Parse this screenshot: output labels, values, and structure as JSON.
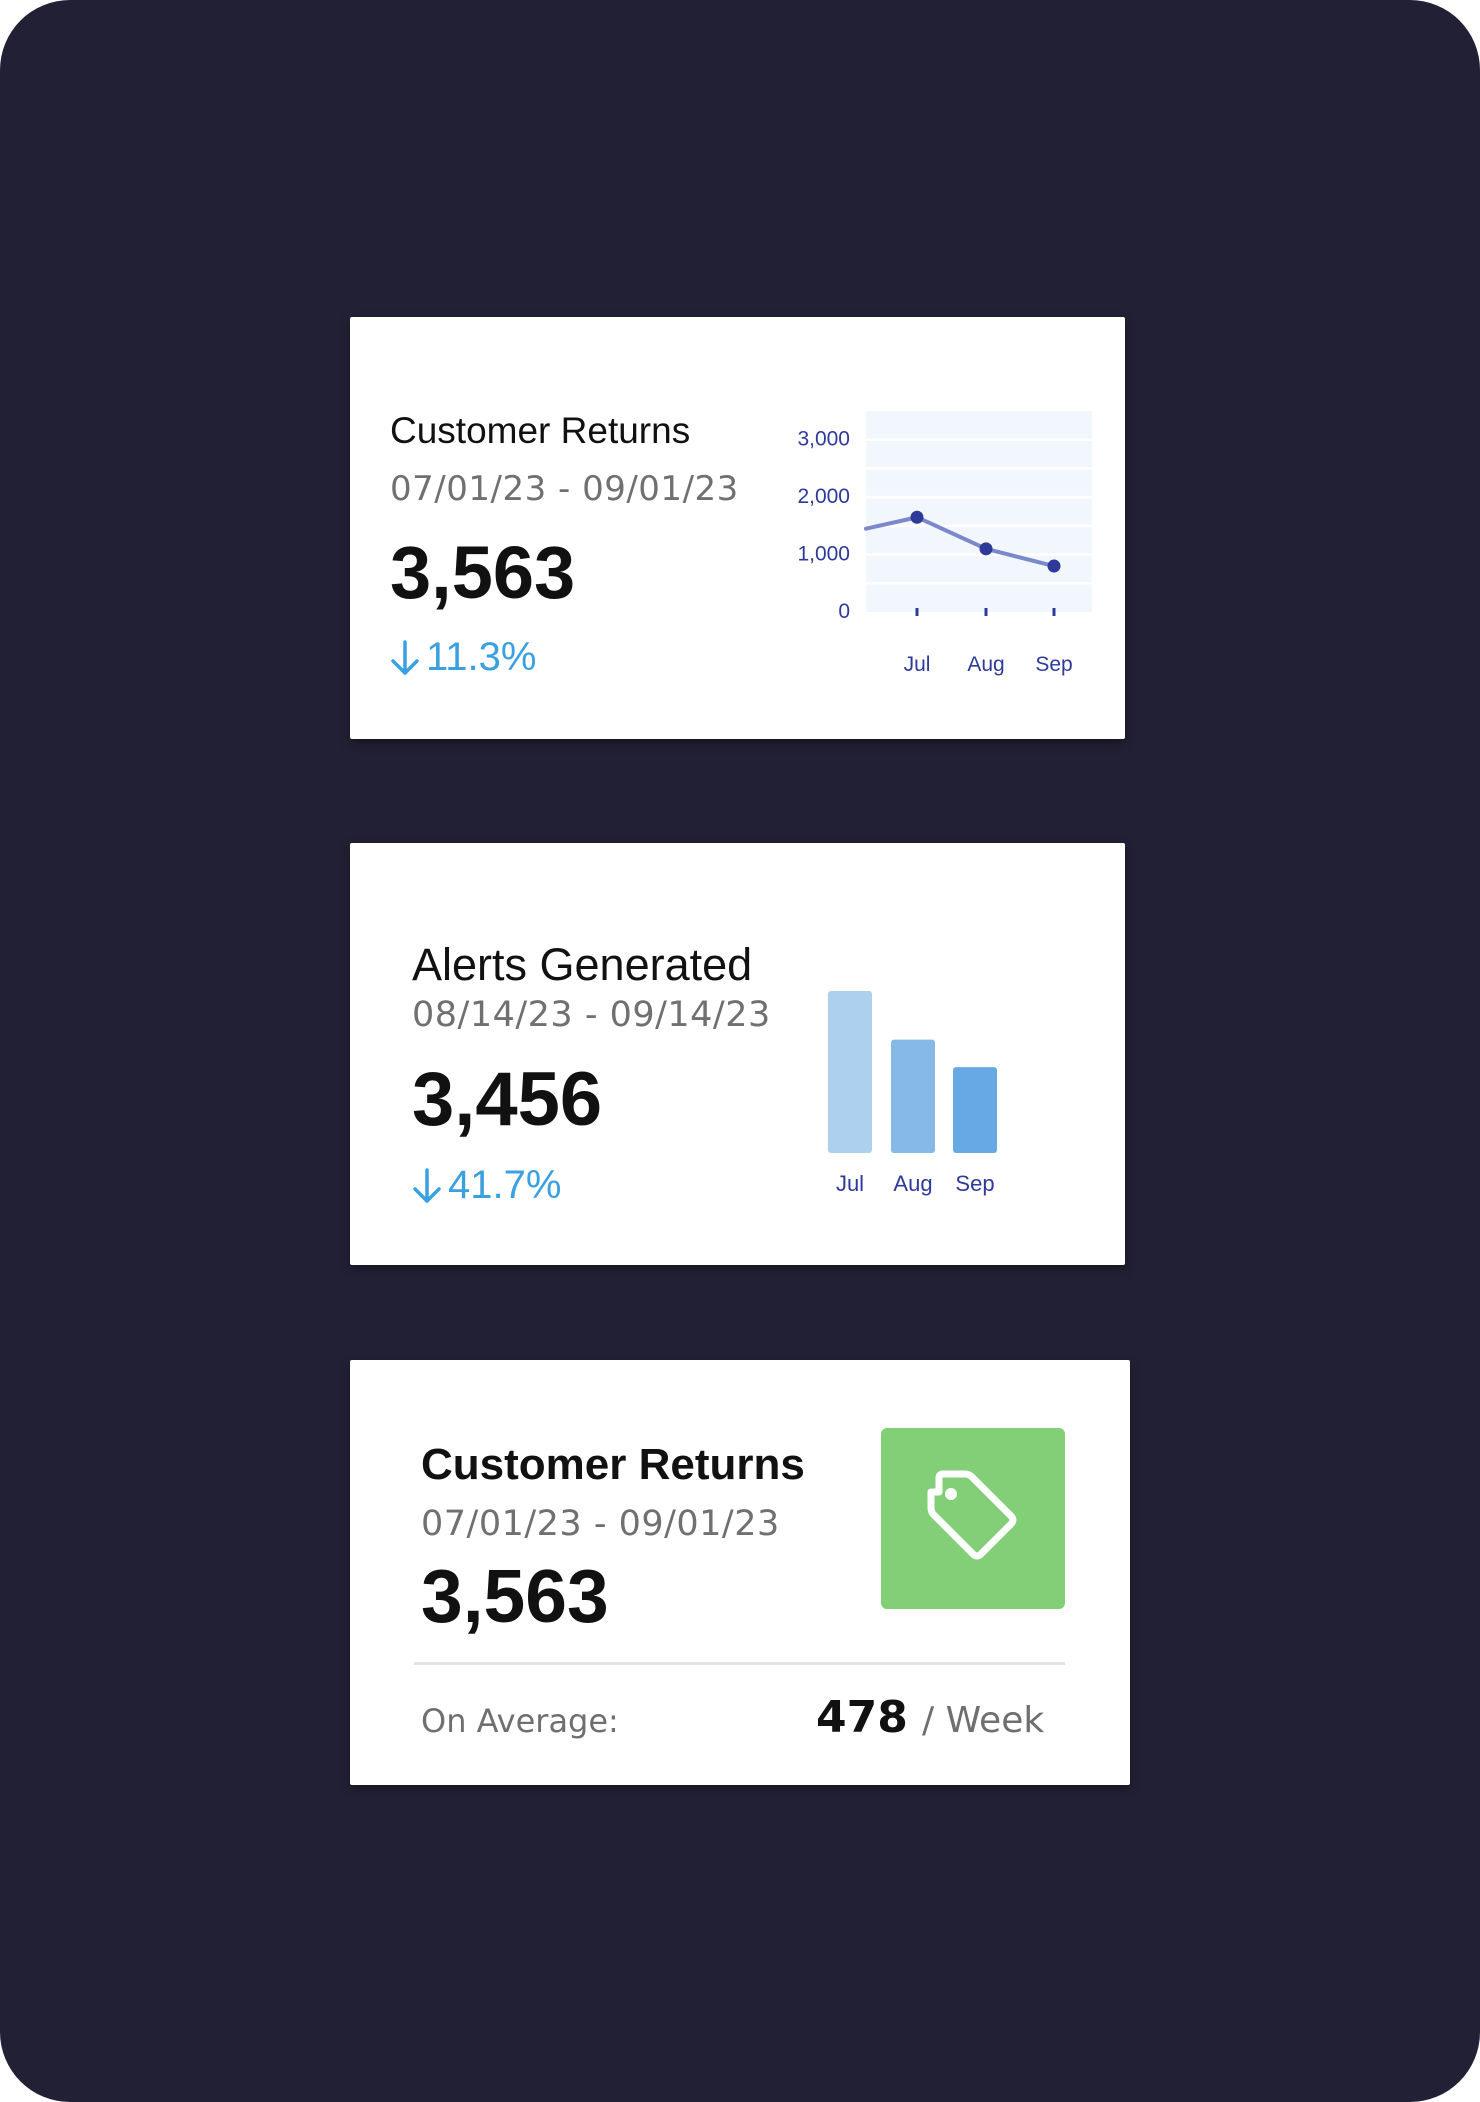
{
  "cards": [
    {
      "title": "Customer Returns",
      "date_range": "07/01/23 - 09/01/23",
      "value": "3,563",
      "delta": "11.3%",
      "delta_direction": "down",
      "delta_color": "#3aa0e0"
    },
    {
      "title": "Alerts Generated",
      "date_range": "08/14/23 - 09/14/23",
      "value": "3,456",
      "delta": "41.7%",
      "delta_direction": "down",
      "delta_color": "#3aa0e0"
    },
    {
      "title": "Customer Returns",
      "date_range": "07/01/23 - 09/01/23",
      "value": "3,563",
      "icon": "tag-icon",
      "icon_tile_color": "#82cf77",
      "average_label": "On Average:",
      "average_value": "478",
      "average_unit": "/ Week"
    }
  ],
  "chart_data": [
    {
      "type": "line",
      "categories": [
        "Jul",
        "Aug",
        "Sep"
      ],
      "series": [
        {
          "values": [
            1650,
            1100,
            800
          ],
          "color": "#7b88c9",
          "marker_color": "#2e3a9a"
        }
      ],
      "leading_value": 1450,
      "yticks": [
        "3,000",
        "2,000",
        "1,000",
        "0"
      ],
      "ylim": [
        0,
        3500
      ],
      "grid": true,
      "plot_background": "#f2f6fd",
      "tick_color": "#2e3a9a",
      "title": "",
      "xlabel": "",
      "ylabel": ""
    },
    {
      "type": "bar",
      "categories": [
        "Jul",
        "Aug",
        "Sep"
      ],
      "values": [
        100,
        70,
        53
      ],
      "colors": [
        "#add0ee",
        "#86b9e6",
        "#66a9e3"
      ],
      "tick_color": "#2e3a9a",
      "title": "",
      "xlabel": "",
      "ylabel": ""
    }
  ]
}
